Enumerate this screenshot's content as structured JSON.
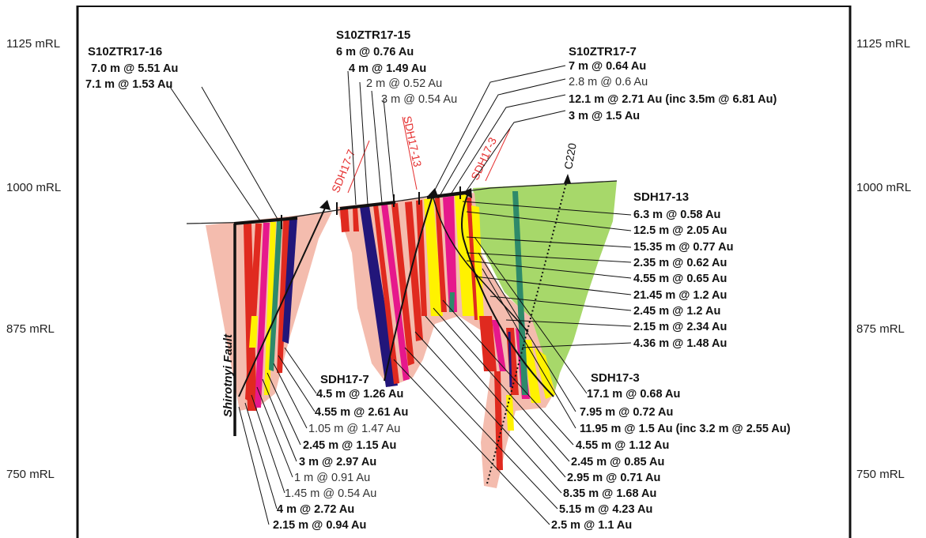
{
  "rl_left": [
    "1125 mRL",
    "1000 mRL",
    "875 mRL",
    "750 mRL"
  ],
  "rl_right": [
    "1125 mRL",
    "1000 mRL",
    "875 mRL",
    "750 mRL"
  ],
  "fault_label": "Shirotnyi Fault",
  "drillhole_labels": {
    "sdh17_7": "SDH17-7",
    "sdh17_13": "SDH17-13",
    "sdh17_3": "SDH17-3",
    "c220": "C220"
  },
  "trench_16": {
    "title": "S10ZTR17-16",
    "lines": [
      "7.0 m @ 5.51 Au",
      "7.1 m @ 1.53 Au"
    ]
  },
  "trench_15": {
    "title": "S10ZTR17-15",
    "lines": [
      "6 m @ 0.76 Au",
      "4 m @ 1.49 Au",
      "2 m @ 0.52 Au",
      "3 m @ 0.54 Au"
    ]
  },
  "trench_7": {
    "title": "S10ZTR17-7",
    "lines": [
      "7 m @ 0.64 Au",
      "2.8 m @ 0.6 Au",
      "12.1 m @ 2.71 Au (inc 3.5m @ 6.81 Au)",
      "3 m @ 1.5 Au"
    ]
  },
  "sdh17_13": {
    "title": "SDH17-13",
    "lines": [
      "6.3 m @ 0.58 Au",
      "12.5 m @ 2.05 Au",
      "15.35 m @ 0.77 Au",
      "2.35 m @ 0.62 Au",
      "4.55 m @ 0.65 Au",
      "21.45 m @ 1.2 Au",
      "2.45 m @ 1.2 Au",
      "2.15 m @ 2.34 Au",
      "4.36 m @ 1.48 Au"
    ]
  },
  "sdh17_7": {
    "title": "SDH17-7",
    "lines": [
      "4.5 m @ 1.26 Au",
      "4.55 m @ 2.61 Au",
      "1.05 m @ 1.47 Au",
      "2.45 m @ 1.15 Au",
      "3 m @ 2.97 Au",
      "1 m @ 0.91 Au",
      "1.45 m @ 0.54 Au",
      "4 m @ 2.72 Au",
      "2.15 m @ 0.94 Au"
    ]
  },
  "sdh17_3": {
    "title": "SDH17-3",
    "lines": [
      "17.1 m @ 0.68 Au",
      "7.95 m @ 0.72 Au",
      "11.95 m @ 1.5 Au (inc 3.2 m @ 2.55 Au)",
      "4.55 m @ 1.12 Au",
      "2.45 m @ 0.85 Au",
      "2.95 m @ 0.71 Au",
      "8.35 m @ 1.68 Au",
      "5.15 m @ 4.23 Au",
      "2.5 m @ 1.1 Au"
    ]
  },
  "colors": {
    "salmon": "#f4bcae",
    "green": "#a7d86a",
    "red": "#e02a1f",
    "magenta": "#e6188c",
    "yellow": "#fff200",
    "navy": "#22167a",
    "teal": "#2e8a6a"
  }
}
